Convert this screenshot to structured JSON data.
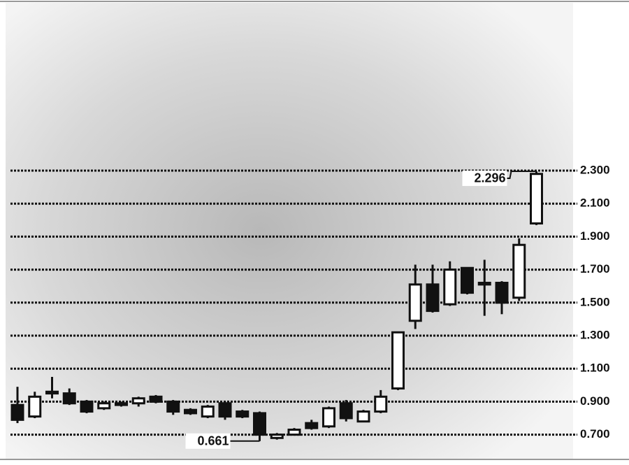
{
  "chart_data": {
    "type": "candlestick",
    "categories": [
      null,
      null,
      null,
      null,
      null,
      null,
      null,
      null,
      null,
      null,
      null,
      null,
      null,
      null,
      null,
      null,
      null,
      null,
      null,
      null,
      null,
      null,
      null,
      null,
      null,
      null,
      null,
      null,
      null,
      null,
      null
    ],
    "open": [
      0.88,
      0.81,
      0.95,
      0.95,
      0.9,
      0.86,
      0.88,
      0.89,
      0.93,
      0.9,
      0.85,
      0.81,
      0.89,
      0.84,
      0.83,
      0.68,
      0.7,
      0.77,
      0.75,
      0.89,
      0.78,
      0.84,
      0.98,
      1.39,
      1.61,
      1.49,
      1.71,
      1.61,
      1.62,
      1.53,
      1.98
    ],
    "high": [
      0.99,
      0.96,
      1.05,
      0.98,
      0.91,
      0.9,
      0.9,
      0.93,
      0.94,
      0.91,
      0.86,
      0.88,
      0.9,
      0.85,
      0.84,
      0.71,
      0.74,
      0.79,
      0.87,
      0.91,
      0.85,
      0.97,
      1.32,
      1.73,
      1.73,
      1.75,
      1.71,
      1.76,
      1.63,
      1.89,
      2.296
    ],
    "low": [
      0.77,
      0.8,
      0.92,
      0.88,
      0.83,
      0.85,
      0.87,
      0.87,
      0.89,
      0.82,
      0.82,
      0.8,
      0.79,
      0.8,
      0.661,
      0.67,
      0.7,
      0.73,
      0.74,
      0.78,
      0.78,
      0.83,
      0.97,
      1.34,
      1.44,
      1.48,
      1.55,
      1.42,
      1.43,
      1.51,
      1.97
    ],
    "close": [
      0.79,
      0.93,
      0.96,
      0.89,
      0.84,
      0.89,
      0.89,
      0.92,
      0.9,
      0.84,
      0.83,
      0.87,
      0.81,
      0.81,
      0.7,
      0.7,
      0.73,
      0.74,
      0.86,
      0.8,
      0.84,
      0.93,
      1.32,
      1.61,
      1.45,
      1.7,
      1.56,
      1.62,
      1.5,
      1.85,
      2.28
    ],
    "up_color": "#ffffff",
    "down_color": "#111111",
    "line_color": "#111111",
    "ylim": [
      0.6,
      2.4
    ],
    "yticks": [
      {
        "value": 0.7,
        "label": "0.700"
      },
      {
        "value": 0.9,
        "label": "0.900"
      },
      {
        "value": 1.1,
        "label": "1.100"
      },
      {
        "value": 1.3,
        "label": "1.300"
      },
      {
        "value": 1.5,
        "label": "1.500"
      },
      {
        "value": 1.7,
        "label": "1.700"
      },
      {
        "value": 1.9,
        "label": "1.900"
      },
      {
        "value": 2.1,
        "label": "2.100"
      },
      {
        "value": 2.3,
        "label": "2.300"
      }
    ],
    "grid": true,
    "annotations": [
      {
        "value": 2.296,
        "label": "2.296",
        "index": 30
      },
      {
        "value": 0.661,
        "label": "0.661",
        "index": 14
      }
    ]
  }
}
